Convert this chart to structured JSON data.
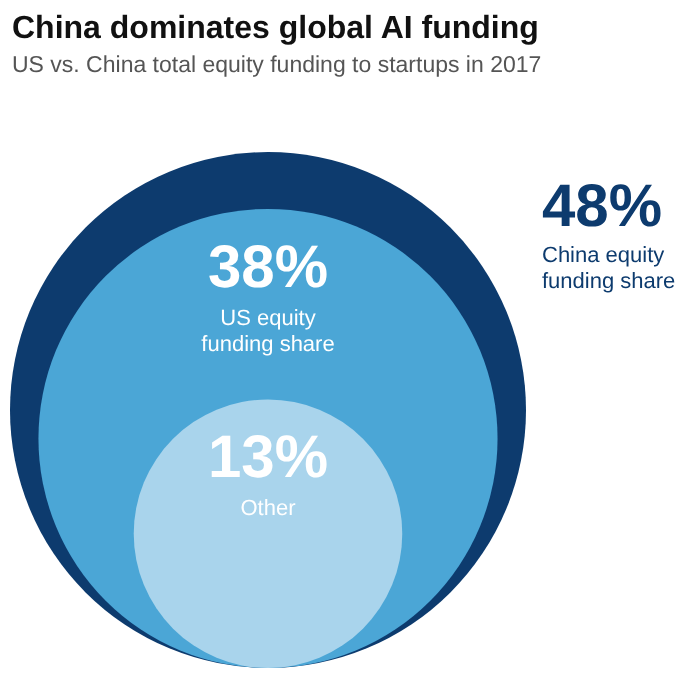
{
  "chart_data": {
    "type": "other",
    "title": "China dominates global AI funding",
    "subtitle": "US vs. China total equity funding to startups in 2017",
    "categories": [
      "China equity\nfunding share",
      "US equity\nfunding share",
      "Other"
    ],
    "values": [
      48,
      38,
      13
    ],
    "value_labels": [
      "48%",
      "38%",
      "13%"
    ],
    "colors": [
      "#0d3b6e",
      "#4ba6d6",
      "#a9d4ec"
    ]
  }
}
